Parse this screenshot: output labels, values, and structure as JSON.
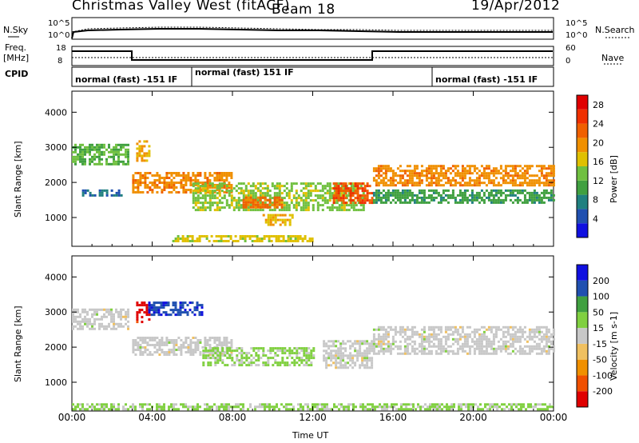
{
  "header": {
    "station": "Christmas Valley West (fitACF)",
    "beam": "Beam 18",
    "date": "19/Apr/2012"
  },
  "strips": {
    "nsky_label": "N.Sky",
    "nsearch_label": "N.Search",
    "nsky_ticks": [
      "10^5",
      "10^0"
    ],
    "nsearch_ticks": [
      "10^5",
      "10^0"
    ],
    "freq_label_line1": "Freq.",
    "freq_label_line2": "[MHz]",
    "freq_ticks": [
      "18",
      "8"
    ],
    "nave_label": "Nave",
    "nave_ticks": [
      "60",
      "0"
    ],
    "cpid_label": "CPID",
    "cpid_segments": [
      {
        "label": "normal (fast) -151 IF",
        "start_hour": 0
      },
      {
        "label": "normal (fast) 151 IF",
        "start_hour": 6
      },
      {
        "label": "normal (fast) -151 IF",
        "start_hour": 18
      }
    ]
  },
  "chart_data": [
    {
      "type": "heatmap",
      "title": "",
      "xlabel": "Time UT",
      "ylabel": "Slant Range [km]",
      "xlim": [
        0,
        24
      ],
      "ylim": [
        180,
        4600
      ],
      "x_ticks": [
        "00:00",
        "04:00",
        "08:00",
        "12:00",
        "16:00",
        "20:00",
        "00:00"
      ],
      "y_ticks": [
        1000,
        2000,
        3000,
        4000
      ],
      "colorbar": {
        "label": "Power [dB]",
        "ticks": [
          4,
          8,
          12,
          16,
          20,
          24,
          28
        ],
        "range": [
          0,
          30
        ],
        "colors": [
          "#1010e0",
          "#2050b0",
          "#208080",
          "#40a040",
          "#70c040",
          "#e0c000",
          "#f09000",
          "#f06000",
          "#f03000",
          "#e00000"
        ]
      },
      "regions": [
        {
          "t0": 0.0,
          "t1": 2.8,
          "r0": 2500,
          "r1": 3100,
          "value": 12
        },
        {
          "t0": 0.5,
          "t1": 2.5,
          "r0": 1600,
          "r1": 1800,
          "value": 6
        },
        {
          "t0": 3.2,
          "t1": 3.8,
          "r0": 2600,
          "r1": 3200,
          "value": 18
        },
        {
          "t0": 3.0,
          "t1": 8.0,
          "r0": 1700,
          "r1": 2300,
          "value": 20
        },
        {
          "t0": 6.0,
          "t1": 14.5,
          "r0": 1200,
          "r1": 2000,
          "value": 14
        },
        {
          "t0": 8.5,
          "t1": 10.5,
          "r0": 1300,
          "r1": 1600,
          "value": 22
        },
        {
          "t0": 9.5,
          "t1": 11.0,
          "r0": 800,
          "r1": 1100,
          "value": 18
        },
        {
          "t0": 13.0,
          "t1": 15.0,
          "r0": 1400,
          "r1": 2000,
          "value": 24
        },
        {
          "t0": 15.0,
          "t1": 24.0,
          "r0": 1900,
          "r1": 2500,
          "value": 20
        },
        {
          "t0": 15.0,
          "t1": 24.0,
          "r0": 1400,
          "r1": 1800,
          "value": 10
        },
        {
          "t0": 5.0,
          "t1": 12.0,
          "r0": 300,
          "r1": 500,
          "value": 16
        }
      ]
    },
    {
      "type": "heatmap",
      "title": "",
      "xlabel": "Time UT",
      "ylabel": "Slant Range [km]",
      "xlim": [
        0,
        24
      ],
      "ylim": [
        180,
        4600
      ],
      "x_ticks": [
        "00:00",
        "04:00",
        "08:00",
        "12:00",
        "16:00",
        "20:00",
        "00:00"
      ],
      "y_ticks": [
        1000,
        2000,
        3000,
        4000
      ],
      "colorbar": {
        "label": "Velocity [m s-1]",
        "ticks": [
          200,
          100,
          50,
          15,
          -15,
          -50,
          -100,
          -200
        ],
        "range": [
          -250,
          250
        ],
        "colors": [
          "#e00000",
          "#f05000",
          "#f09000",
          "#f0c060",
          "#c8c8c8",
          "#80d040",
          "#40a040",
          "#2050b0",
          "#1010e0"
        ]
      },
      "regions": [
        {
          "t0": 0.0,
          "t1": 2.8,
          "r0": 2500,
          "r1": 3100,
          "value": 0
        },
        {
          "t0": 3.2,
          "t1": 3.8,
          "r0": 2700,
          "r1": 3300,
          "value": -220
        },
        {
          "t0": 3.8,
          "t1": 6.5,
          "r0": 2900,
          "r1": 3300,
          "value": 180
        },
        {
          "t0": 3.0,
          "t1": 8.0,
          "r0": 1800,
          "r1": 2300,
          "value": 0
        },
        {
          "t0": 6.5,
          "t1": 12.0,
          "r0": 1500,
          "r1": 2000,
          "value": 40
        },
        {
          "t0": 12.5,
          "t1": 15.0,
          "r0": 1400,
          "r1": 2200,
          "value": 0
        },
        {
          "t0": 15.0,
          "t1": 24.0,
          "r0": 1800,
          "r1": 2600,
          "value": 0
        },
        {
          "t0": 0.0,
          "t1": 24.0,
          "r0": 200,
          "r1": 400,
          "value": 40
        }
      ]
    }
  ]
}
